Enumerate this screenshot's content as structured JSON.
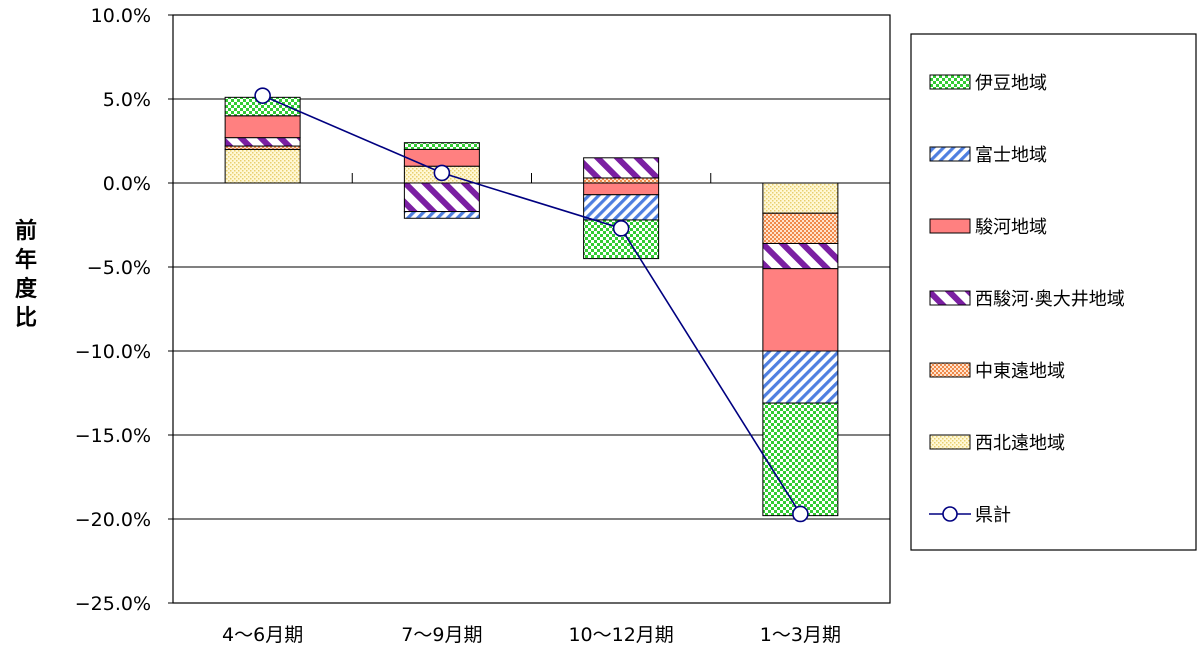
{
  "chart_data": {
    "type": "bar",
    "stacked": true,
    "title": "",
    "xlabel": "",
    "ylabel": "前年度比",
    "ylim": [
      -25.0,
      10.0
    ],
    "yticks": [
      10.0,
      5.0,
      0.0,
      -5.0,
      -10.0,
      -15.0,
      -20.0,
      -25.0
    ],
    "ytick_labels": [
      "10.0%",
      "5.0%",
      "0.0%",
      "−5.0%",
      "−10.0%",
      "−15.0%",
      "−20.0%",
      "−25.0%"
    ],
    "categories": [
      "4〜6月期",
      "7〜9月期",
      "10〜12月期",
      "1〜3月期"
    ],
    "grid": true,
    "legend_position": "right",
    "series": [
      {
        "name": "西北遠地域",
        "pattern": "dots-yellow",
        "color": "#FFF2B3",
        "values": [
          2.0,
          1.0,
          0.0,
          -1.8
        ]
      },
      {
        "name": "中東遠地域",
        "pattern": "dots-orange",
        "color": "#F7B58A",
        "values": [
          0.2,
          0.0,
          0.3,
          -1.8
        ]
      },
      {
        "name": "西駿河·奥大井地域",
        "pattern": "diag-purple",
        "color": "#7B1FA2",
        "values": [
          0.5,
          -1.7,
          1.2,
          -1.5
        ]
      },
      {
        "name": "駿河地域",
        "pattern": "solid-red",
        "color": "#FF8080",
        "values": [
          1.3,
          1.0,
          -0.7,
          -4.9
        ]
      },
      {
        "name": "富士地域",
        "pattern": "diag-blue",
        "color": "#4F7FE0",
        "values": [
          0.0,
          -0.4,
          -1.5,
          -3.1
        ]
      },
      {
        "name": "伊豆地域",
        "pattern": "check-green",
        "color": "#33CC33",
        "values": [
          1.1,
          0.4,
          -2.3,
          -6.7
        ]
      }
    ],
    "line_series": {
      "name": "県計",
      "color": "#000080",
      "values": [
        5.2,
        0.6,
        -2.7,
        -19.7
      ]
    },
    "legend_order": [
      "伊豆地域",
      "富士地域",
      "駿河地域",
      "西駿河·奥大井地域",
      "中東遠地域",
      "西北遠地域",
      "県計"
    ]
  }
}
